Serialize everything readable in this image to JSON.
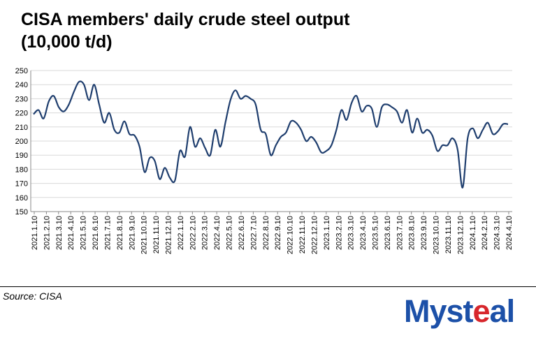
{
  "header": {
    "title_line1": "CISA members' daily crude steel output",
    "title_line2": "(10,000 t/d)"
  },
  "footer": {
    "source": "Source: CISA",
    "logo_main": "Myst",
    "logo_accent": "e",
    "logo_tail": "al"
  },
  "colors": {
    "line": "#1f3e6e",
    "grid": "#d9d9d9",
    "logo_blue": "#1c50a8",
    "logo_red": "#d7262c"
  },
  "chart_data": {
    "type": "line",
    "title": "CISA members' daily crude steel output (10,000 t/d)",
    "ylabel": "10,000 t/d",
    "ylim": [
      150,
      250
    ],
    "yticks": [
      150,
      160,
      170,
      180,
      190,
      200,
      210,
      220,
      230,
      240,
      250
    ],
    "grid": true,
    "x_labels": [
      "2021.1.10",
      "2021.2.10",
      "2021.3.10",
      "2021.4.10",
      "2021.5.10",
      "2021.6.10",
      "2021.7.10",
      "2021.8.10",
      "2021.9.10",
      "2021.10.10",
      "2021.11.10",
      "2021.12.10",
      "2022.1.10",
      "2022.2.10",
      "2022.3.10",
      "2022.4.10",
      "2022.5.10",
      "2022.6.10",
      "2022.7.10",
      "2022.8.10",
      "2022.9.10",
      "2022.10.10",
      "2022.11.10",
      "2022.12.10",
      "2023.1.10",
      "2023.2.10",
      "2023.3.10",
      "2023.4.10",
      "2023.5.10",
      "2023.6.10",
      "2023.7.10",
      "2023.8.10",
      "2023.9.10",
      "2023.10.10",
      "2023.11.10",
      "2023.12.10",
      "2024.1.10",
      "2024.2.10",
      "2024.3.10",
      "2024.4.10"
    ],
    "series": [
      {
        "name": "Daily crude steel output",
        "values": [
          219,
          222,
          216,
          228,
          232,
          224,
          221,
          226,
          235,
          242,
          240,
          229,
          240,
          226,
          213,
          220,
          208,
          206,
          214,
          205,
          204,
          196,
          178,
          188,
          186,
          173,
          181,
          174,
          172,
          193,
          189,
          210,
          196,
          202,
          195,
          190,
          208,
          196,
          213,
          229,
          236,
          230,
          232,
          230,
          226,
          208,
          205,
          190,
          197,
          203,
          206,
          214,
          213,
          208,
          200,
          203,
          199,
          192,
          193,
          197,
          208,
          222,
          215,
          227,
          232,
          221,
          225,
          223,
          210,
          224,
          226,
          224,
          221,
          213,
          222,
          206,
          216,
          206,
          208,
          204,
          193,
          197,
          197,
          202,
          194,
          167,
          202,
          209,
          202,
          208,
          213,
          205,
          207,
          212,
          212
        ]
      }
    ]
  }
}
